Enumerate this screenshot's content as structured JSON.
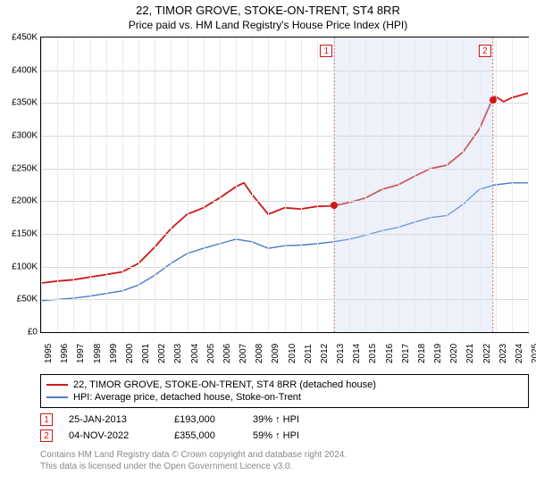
{
  "title": "22, TIMOR GROVE, STOKE-ON-TRENT, ST4 8RR",
  "subtitle": "Price paid vs. HM Land Registry's House Price Index (HPI)",
  "chart": {
    "type": "line",
    "ylim": [
      0,
      450000
    ],
    "ytick_step": 50000,
    "yticks_labels": [
      "£0",
      "£50K",
      "£100K",
      "£150K",
      "£200K",
      "£250K",
      "£300K",
      "£350K",
      "£400K",
      "£450K"
    ],
    "xlim": [
      1995,
      2025
    ],
    "xticks": [
      1995,
      1996,
      1997,
      1998,
      1999,
      2000,
      2001,
      2002,
      2003,
      2004,
      2005,
      2006,
      2007,
      2008,
      2009,
      2010,
      2011,
      2012,
      2013,
      2014,
      2015,
      2016,
      2017,
      2018,
      2019,
      2020,
      2021,
      2022,
      2023,
      2024,
      2025
    ],
    "background_color": "#ffffff",
    "grid_color": "#d9d9d9",
    "shade_start_year": 2013.07,
    "shade_end_year": 2022.84,
    "shade_color": "rgba(200,215,240,0.35)",
    "series": [
      {
        "id": "hpi",
        "label": "HPI: Average price, detached house, Stoke-on-Trent",
        "color": "#4a7bc8",
        "line_width": 1.4,
        "points": [
          [
            1995,
            48000
          ],
          [
            1996,
            50000
          ],
          [
            1997,
            52000
          ],
          [
            1998,
            55000
          ],
          [
            1999,
            59000
          ],
          [
            2000,
            63000
          ],
          [
            2001,
            72000
          ],
          [
            2002,
            87000
          ],
          [
            2003,
            105000
          ],
          [
            2004,
            120000
          ],
          [
            2005,
            128000
          ],
          [
            2006,
            135000
          ],
          [
            2007,
            142000
          ],
          [
            2008,
            138000
          ],
          [
            2009,
            128000
          ],
          [
            2010,
            132000
          ],
          [
            2011,
            133000
          ],
          [
            2012,
            135000
          ],
          [
            2013,
            138000
          ],
          [
            2014,
            142000
          ],
          [
            2015,
            148000
          ],
          [
            2016,
            155000
          ],
          [
            2017,
            160000
          ],
          [
            2018,
            168000
          ],
          [
            2019,
            175000
          ],
          [
            2020,
            178000
          ],
          [
            2021,
            195000
          ],
          [
            2022,
            218000
          ],
          [
            2023,
            225000
          ],
          [
            2024,
            228000
          ],
          [
            2025,
            228000
          ]
        ]
      },
      {
        "id": "property",
        "label": "22, TIMOR GROVE, STOKE-ON-TRENT, ST4 8RR (detached house)",
        "color": "#d01717",
        "line_width": 1.8,
        "points": [
          [
            1995,
            75000
          ],
          [
            1996,
            78000
          ],
          [
            1997,
            80000
          ],
          [
            1998,
            84000
          ],
          [
            1999,
            88000
          ],
          [
            2000,
            92000
          ],
          [
            2001,
            105000
          ],
          [
            2002,
            130000
          ],
          [
            2003,
            158000
          ],
          [
            2004,
            180000
          ],
          [
            2005,
            190000
          ],
          [
            2006,
            205000
          ],
          [
            2007,
            222000
          ],
          [
            2007.5,
            228000
          ],
          [
            2008,
            210000
          ],
          [
            2008.5,
            195000
          ],
          [
            2009,
            180000
          ],
          [
            2010,
            190000
          ],
          [
            2011,
            188000
          ],
          [
            2012,
            192000
          ],
          [
            2013,
            193000
          ],
          [
            2014,
            198000
          ],
          [
            2015,
            205000
          ],
          [
            2016,
            218000
          ],
          [
            2017,
            225000
          ],
          [
            2018,
            238000
          ],
          [
            2019,
            250000
          ],
          [
            2020,
            255000
          ],
          [
            2021,
            275000
          ],
          [
            2022,
            310000
          ],
          [
            2022.8,
            355000
          ],
          [
            2023,
            360000
          ],
          [
            2023.5,
            352000
          ],
          [
            2024,
            358000
          ],
          [
            2025,
            365000
          ]
        ]
      }
    ],
    "markers": [
      {
        "num": "1",
        "year": 2013.07,
        "value": 193000,
        "color": "#d01717",
        "box_offset_y": -20
      },
      {
        "num": "2",
        "year": 2022.84,
        "value": 355000,
        "color": "#d01717",
        "box_offset_y": -20
      }
    ]
  },
  "legend": [
    {
      "color": "#d01717",
      "text": "22, TIMOR GROVE, STOKE-ON-TRENT, ST4 8RR (detached house)"
    },
    {
      "color": "#4a7bc8",
      "text": "HPI: Average price, detached house, Stoke-on-Trent"
    }
  ],
  "transactions": [
    {
      "num": "1",
      "color": "#d01717",
      "date": "25-JAN-2013",
      "price": "£193,000",
      "delta": "39% ↑ HPI"
    },
    {
      "num": "2",
      "color": "#d01717",
      "date": "04-NOV-2022",
      "price": "£355,000",
      "delta": "59% ↑ HPI"
    }
  ],
  "footer_line1": "Contains HM Land Registry data © Crown copyright and database right 2024.",
  "footer_line2": "This data is licensed under the Open Government Licence v3.0."
}
